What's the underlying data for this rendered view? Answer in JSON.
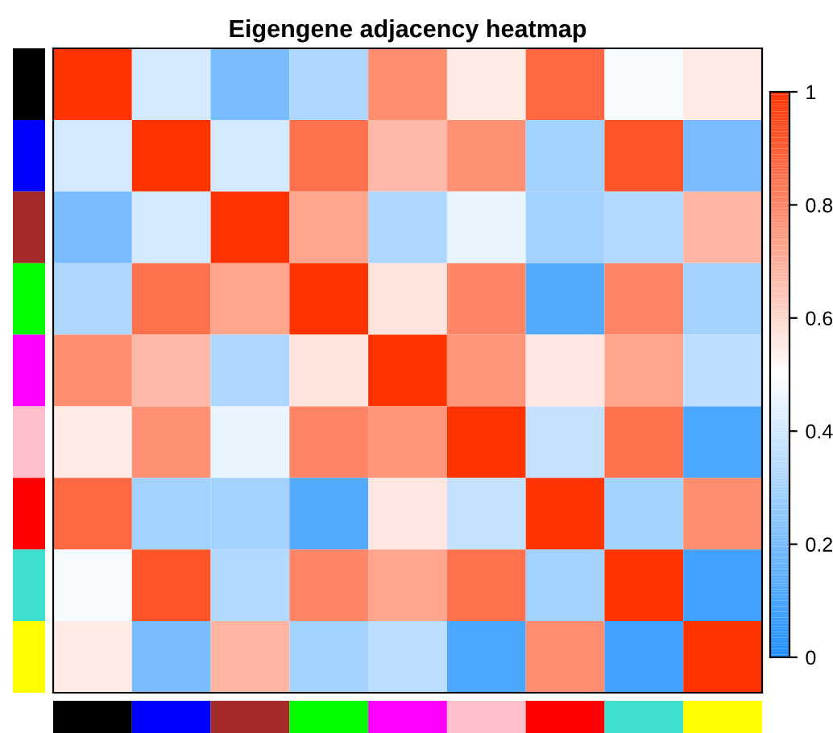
{
  "chart_data": {
    "type": "heatmap",
    "title": "Eigengene adjacency heatmap",
    "categories": [
      null,
      null,
      null,
      null,
      null,
      null,
      null,
      null,
      null
    ],
    "y_categories": [
      null,
      null,
      null,
      null,
      null,
      null,
      null,
      null,
      null
    ],
    "cells": [
      [
        1,
        0.4,
        0.2,
        0.32,
        0.78,
        0.55,
        0.87,
        0.48,
        0.55
      ],
      [
        0.4,
        1,
        0.4,
        0.85,
        0.67,
        0.77,
        0.3,
        0.92,
        0.2
      ],
      [
        0.2,
        0.4,
        1,
        0.72,
        0.32,
        0.45,
        0.3,
        0.33,
        0.68
      ],
      [
        0.32,
        0.85,
        0.72,
        1,
        0.57,
        0.8,
        0.12,
        0.8,
        0.3
      ],
      [
        0.78,
        0.67,
        0.32,
        0.57,
        1,
        0.76,
        0.56,
        0.72,
        0.35
      ],
      [
        0.55,
        0.77,
        0.45,
        0.8,
        0.76,
        1,
        0.37,
        0.85,
        0.1
      ],
      [
        0.87,
        0.3,
        0.3,
        0.12,
        0.56,
        0.37,
        1,
        0.3,
        0.78
      ],
      [
        0.48,
        0.92,
        0.33,
        0.8,
        0.72,
        0.85,
        0.3,
        1,
        0.08
      ],
      [
        0.55,
        0.2,
        0.68,
        0.3,
        0.35,
        0.1,
        0.78,
        0.08,
        1
      ]
    ],
    "clim": [
      0,
      1
    ],
    "cticks": [
      0,
      0.2,
      0.4,
      0.6,
      0.8,
      1
    ]
  }
}
